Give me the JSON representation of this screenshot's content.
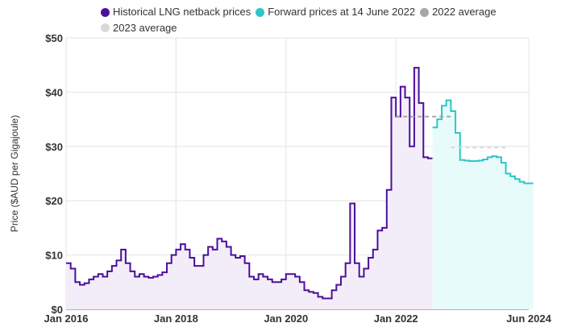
{
  "chart_data": {
    "type": "line",
    "title": "",
    "xlabel": "",
    "ylabel": "Price ($AUD per Gigajoule)",
    "xlim": [
      "2016-01",
      "2024-06"
    ],
    "ylim": [
      0,
      50
    ],
    "grid": true,
    "legend_position": "top",
    "x_ticks": [
      "Jan 2016",
      "Jan 2018",
      "Jan 2020",
      "Jan 2022",
      "Jun 2024"
    ],
    "y_ticks": [
      "$0",
      "$10",
      "$20",
      "$30",
      "$40",
      "$50"
    ],
    "series": [
      {
        "name": "Historical LNG netback prices",
        "color": "#4b0f9b",
        "fill": "#f3edf9",
        "style": "step",
        "points": [
          [
            "2016-01",
            8.5
          ],
          [
            "2016-02",
            7.5
          ],
          [
            "2016-03",
            5.0
          ],
          [
            "2016-04",
            4.5
          ],
          [
            "2016-05",
            4.8
          ],
          [
            "2016-06",
            5.5
          ],
          [
            "2016-07",
            6.0
          ],
          [
            "2016-08",
            6.5
          ],
          [
            "2016-09",
            6.0
          ],
          [
            "2016-10",
            7.0
          ],
          [
            "2016-11",
            8.0
          ],
          [
            "2016-12",
            9.0
          ],
          [
            "2017-01",
            11.0
          ],
          [
            "2017-02",
            8.5
          ],
          [
            "2017-03",
            7.0
          ],
          [
            "2017-04",
            6.0
          ],
          [
            "2017-05",
            6.5
          ],
          [
            "2017-06",
            6.0
          ],
          [
            "2017-07",
            5.8
          ],
          [
            "2017-08",
            6.0
          ],
          [
            "2017-09",
            6.3
          ],
          [
            "2017-10",
            6.8
          ],
          [
            "2017-11",
            8.5
          ],
          [
            "2017-12",
            10.0
          ],
          [
            "2018-01",
            11.0
          ],
          [
            "2018-02",
            12.0
          ],
          [
            "2018-03",
            11.0
          ],
          [
            "2018-04",
            9.5
          ],
          [
            "2018-05",
            8.0
          ],
          [
            "2018-06",
            8.0
          ],
          [
            "2018-07",
            10.0
          ],
          [
            "2018-08",
            11.5
          ],
          [
            "2018-09",
            11.0
          ],
          [
            "2018-10",
            13.0
          ],
          [
            "2018-11",
            12.5
          ],
          [
            "2018-12",
            11.5
          ],
          [
            "2019-01",
            10.0
          ],
          [
            "2019-02",
            9.5
          ],
          [
            "2019-03",
            9.8
          ],
          [
            "2019-04",
            8.5
          ],
          [
            "2019-05",
            6.0
          ],
          [
            "2019-06",
            5.5
          ],
          [
            "2019-07",
            6.5
          ],
          [
            "2019-08",
            6.0
          ],
          [
            "2019-09",
            5.5
          ],
          [
            "2019-10",
            5.0
          ],
          [
            "2019-11",
            5.0
          ],
          [
            "2019-12",
            5.5
          ],
          [
            "2020-01",
            6.5
          ],
          [
            "2020-02",
            6.5
          ],
          [
            "2020-03",
            6.0
          ],
          [
            "2020-04",
            5.0
          ],
          [
            "2020-05",
            3.5
          ],
          [
            "2020-06",
            3.2
          ],
          [
            "2020-07",
            3.0
          ],
          [
            "2020-08",
            2.3
          ],
          [
            "2020-09",
            2.0
          ],
          [
            "2020-10",
            2.0
          ],
          [
            "2020-11",
            3.5
          ],
          [
            "2020-12",
            4.5
          ],
          [
            "2021-01",
            6.0
          ],
          [
            "2021-02",
            8.5
          ],
          [
            "2021-03",
            19.5
          ],
          [
            "2021-04",
            8.5
          ],
          [
            "2021-05",
            6.0
          ],
          [
            "2021-06",
            7.5
          ],
          [
            "2021-07",
            9.5
          ],
          [
            "2021-08",
            11.0
          ],
          [
            "2021-09",
            14.5
          ],
          [
            "2021-10",
            15.0
          ],
          [
            "2021-11",
            22.0
          ],
          [
            "2021-12",
            39.0
          ],
          [
            "2022-01",
            35.5
          ],
          [
            "2022-02",
            41.0
          ],
          [
            "2022-03",
            39.0
          ],
          [
            "2022-04",
            30.0
          ],
          [
            "2022-05",
            44.5
          ],
          [
            "2022-06",
            38.0
          ],
          [
            "2022-07",
            28.0
          ],
          [
            "2022-08",
            27.8
          ]
        ]
      },
      {
        "name": "Forward prices at 14 June 2022",
        "color": "#2ec6c6",
        "fill": "#e8fbfb",
        "style": "step",
        "points": [
          [
            "2022-09",
            33.5
          ],
          [
            "2022-10",
            35.0
          ],
          [
            "2022-11",
            37.5
          ],
          [
            "2022-12",
            38.5
          ],
          [
            "2023-01",
            36.5
          ],
          [
            "2023-02",
            32.5
          ],
          [
            "2023-03",
            27.5
          ],
          [
            "2023-04",
            27.4
          ],
          [
            "2023-05",
            27.3
          ],
          [
            "2023-06",
            27.3
          ],
          [
            "2023-07",
            27.4
          ],
          [
            "2023-08",
            27.6
          ],
          [
            "2023-09",
            28.0
          ],
          [
            "2023-10",
            28.2
          ],
          [
            "2023-11",
            28.0
          ],
          [
            "2023-12",
            27.0
          ],
          [
            "2024-01",
            25.0
          ],
          [
            "2024-02",
            24.5
          ],
          [
            "2024-03",
            24.0
          ],
          [
            "2024-04",
            23.5
          ],
          [
            "2024-05",
            23.2
          ],
          [
            "2024-06",
            23.2
          ]
        ]
      },
      {
        "name": "2022 average",
        "color": "#a6a6a6",
        "style": "dashed",
        "points": [
          [
            "2022-01",
            35.5
          ],
          [
            "2022-12",
            35.5
          ]
        ]
      },
      {
        "name": "2023 average",
        "color": "#d9d9d9",
        "style": "dashed",
        "points": [
          [
            "2023-01",
            29.8
          ],
          [
            "2023-12",
            29.8
          ]
        ]
      }
    ]
  }
}
